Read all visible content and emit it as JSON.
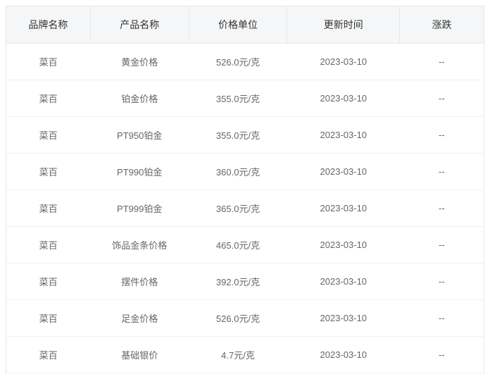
{
  "table": {
    "columns": [
      "品牌名称",
      "产品名称",
      "价格单位",
      "更新时间",
      "涨跌"
    ],
    "rows": [
      {
        "brand": "菜百",
        "product": "黄金价格",
        "price": "526.0元/克",
        "date": "2023-03-10",
        "change": "--"
      },
      {
        "brand": "菜百",
        "product": "铂金价格",
        "price": "355.0元/克",
        "date": "2023-03-10",
        "change": "--"
      },
      {
        "brand": "菜百",
        "product": "PT950铂金",
        "price": "355.0元/克",
        "date": "2023-03-10",
        "change": "--"
      },
      {
        "brand": "菜百",
        "product": "PT990铂金",
        "price": "360.0元/克",
        "date": "2023-03-10",
        "change": "--"
      },
      {
        "brand": "菜百",
        "product": "PT999铂金",
        "price": "365.0元/克",
        "date": "2023-03-10",
        "change": "--"
      },
      {
        "brand": "菜百",
        "product": "饰品金条价格",
        "price": "465.0元/克",
        "date": "2023-03-10",
        "change": "--"
      },
      {
        "brand": "菜百",
        "product": "摆件价格",
        "price": "392.0元/克",
        "date": "2023-03-10",
        "change": "--"
      },
      {
        "brand": "菜百",
        "product": "足金价格",
        "price": "526.0元/克",
        "date": "2023-03-10",
        "change": "--"
      },
      {
        "brand": "菜百",
        "product": "基础银价",
        "price": "4.7元/克",
        "date": "2023-03-10",
        "change": "--"
      }
    ],
    "header_bg": "#f5f6f7",
    "header_text_color": "#333333",
    "cell_text_color": "#666666",
    "border_color": "#e8e8e8",
    "row_border_color": "#f0f0f0",
    "header_fontsize": 14,
    "cell_fontsize": 13
  }
}
